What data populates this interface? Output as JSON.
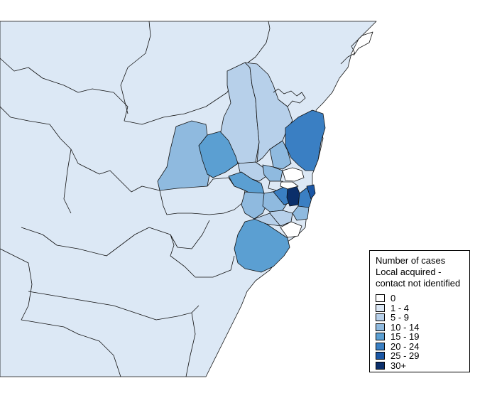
{
  "legend": {
    "title_line1": "Number of cases",
    "title_line2": "Local acquired -",
    "title_line3": "contact not identified",
    "items": [
      {
        "label": "0",
        "color": "#ffffff"
      },
      {
        "label": "1 - 4",
        "color": "#dce8f5"
      },
      {
        "label": "5 - 9",
        "color": "#b7d0ea"
      },
      {
        "label": "10 - 14",
        "color": "#8fbadf"
      },
      {
        "label": "15 - 19",
        "color": "#5b9fd2"
      },
      {
        "label": "20 - 24",
        "color": "#3a7fc3"
      },
      {
        "label": "25 - 29",
        "color": "#1a56a4"
      },
      {
        "label": "30+",
        "color": "#0b2f6a"
      }
    ]
  },
  "colors": {
    "ocean": "#ffffff",
    "outer_land": "#f5f9fd",
    "border": "#111111"
  }
}
